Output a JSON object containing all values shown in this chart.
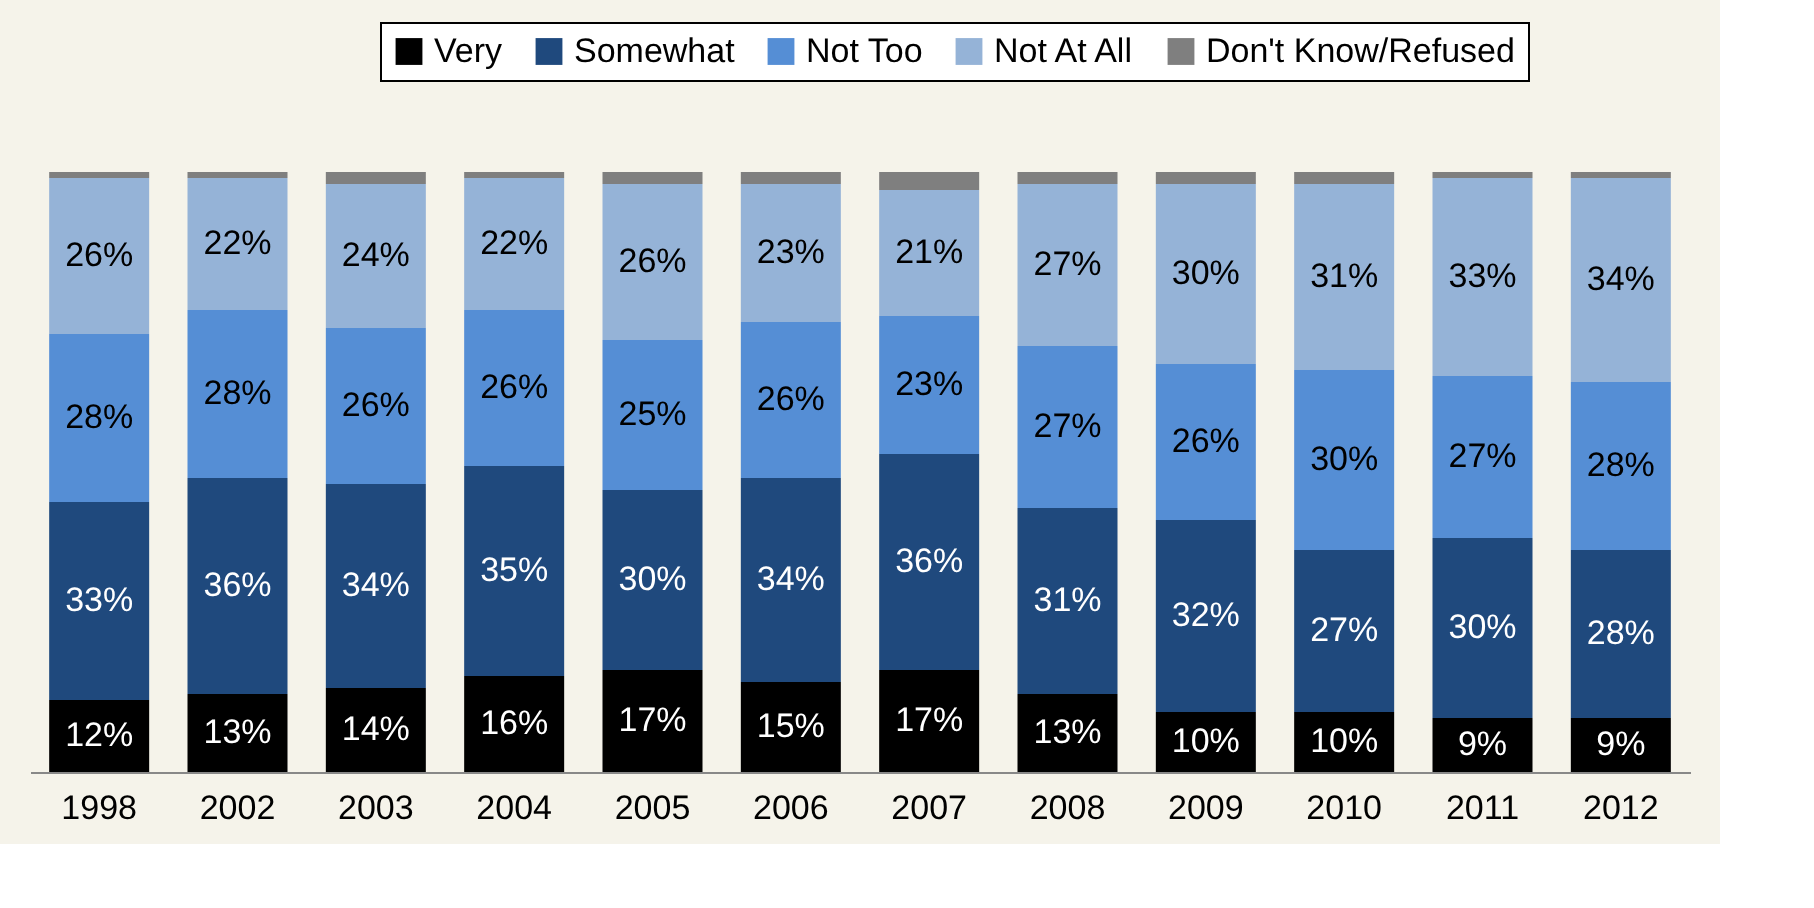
{
  "chart_data": {
    "type": "bar",
    "stacked": true,
    "legend": "top",
    "categories": [
      "1998",
      "2002",
      "2003",
      "2004",
      "2005",
      "2006",
      "2007",
      "2008",
      "2009",
      "2010",
      "2011",
      "2012"
    ],
    "series": [
      {
        "name": "Very",
        "color": "#000000",
        "values": [
          12,
          13,
          14,
          16,
          17,
          15,
          17,
          13,
          10,
          10,
          9,
          9
        ],
        "value_labels": [
          "12%",
          "13%",
          "14%",
          "16%",
          "17%",
          "15%",
          "17%",
          "13%",
          "10%",
          "10%",
          "9%",
          "9%"
        ]
      },
      {
        "name": "Somewhat",
        "color": "#1f497d",
        "values": [
          33,
          36,
          34,
          35,
          30,
          34,
          36,
          31,
          32,
          27,
          30,
          28
        ],
        "value_labels": [
          "33%",
          "36%",
          "34%",
          "35%",
          "30%",
          "34%",
          "36%",
          "31%",
          "32%",
          "27%",
          "30%",
          "28%"
        ]
      },
      {
        "name": "Not Too",
        "color": "#558ed5",
        "values": [
          28,
          28,
          26,
          26,
          25,
          26,
          23,
          27,
          26,
          30,
          27,
          28
        ],
        "value_labels": [
          "28%",
          "28%",
          "26%",
          "26%",
          "25%",
          "26%",
          "23%",
          "27%",
          "26%",
          "30%",
          "27%",
          "28%"
        ]
      },
      {
        "name": "Not At All",
        "color": "#95b3d7",
        "values": [
          26,
          22,
          24,
          22,
          26,
          23,
          21,
          27,
          30,
          31,
          33,
          34
        ],
        "value_labels": [
          "26%",
          "22%",
          "24%",
          "22%",
          "26%",
          "23%",
          "21%",
          "27%",
          "30%",
          "31%",
          "33%",
          "34%"
        ]
      },
      {
        "name": "Don't Know/Refused",
        "color": "#7f7f7f",
        "values": [
          1,
          1,
          2,
          1,
          2,
          2,
          3,
          2,
          2,
          2,
          1,
          1
        ],
        "value_labels": [
          null,
          null,
          null,
          null,
          null,
          null,
          null,
          null,
          null,
          null,
          null,
          null
        ]
      }
    ]
  }
}
